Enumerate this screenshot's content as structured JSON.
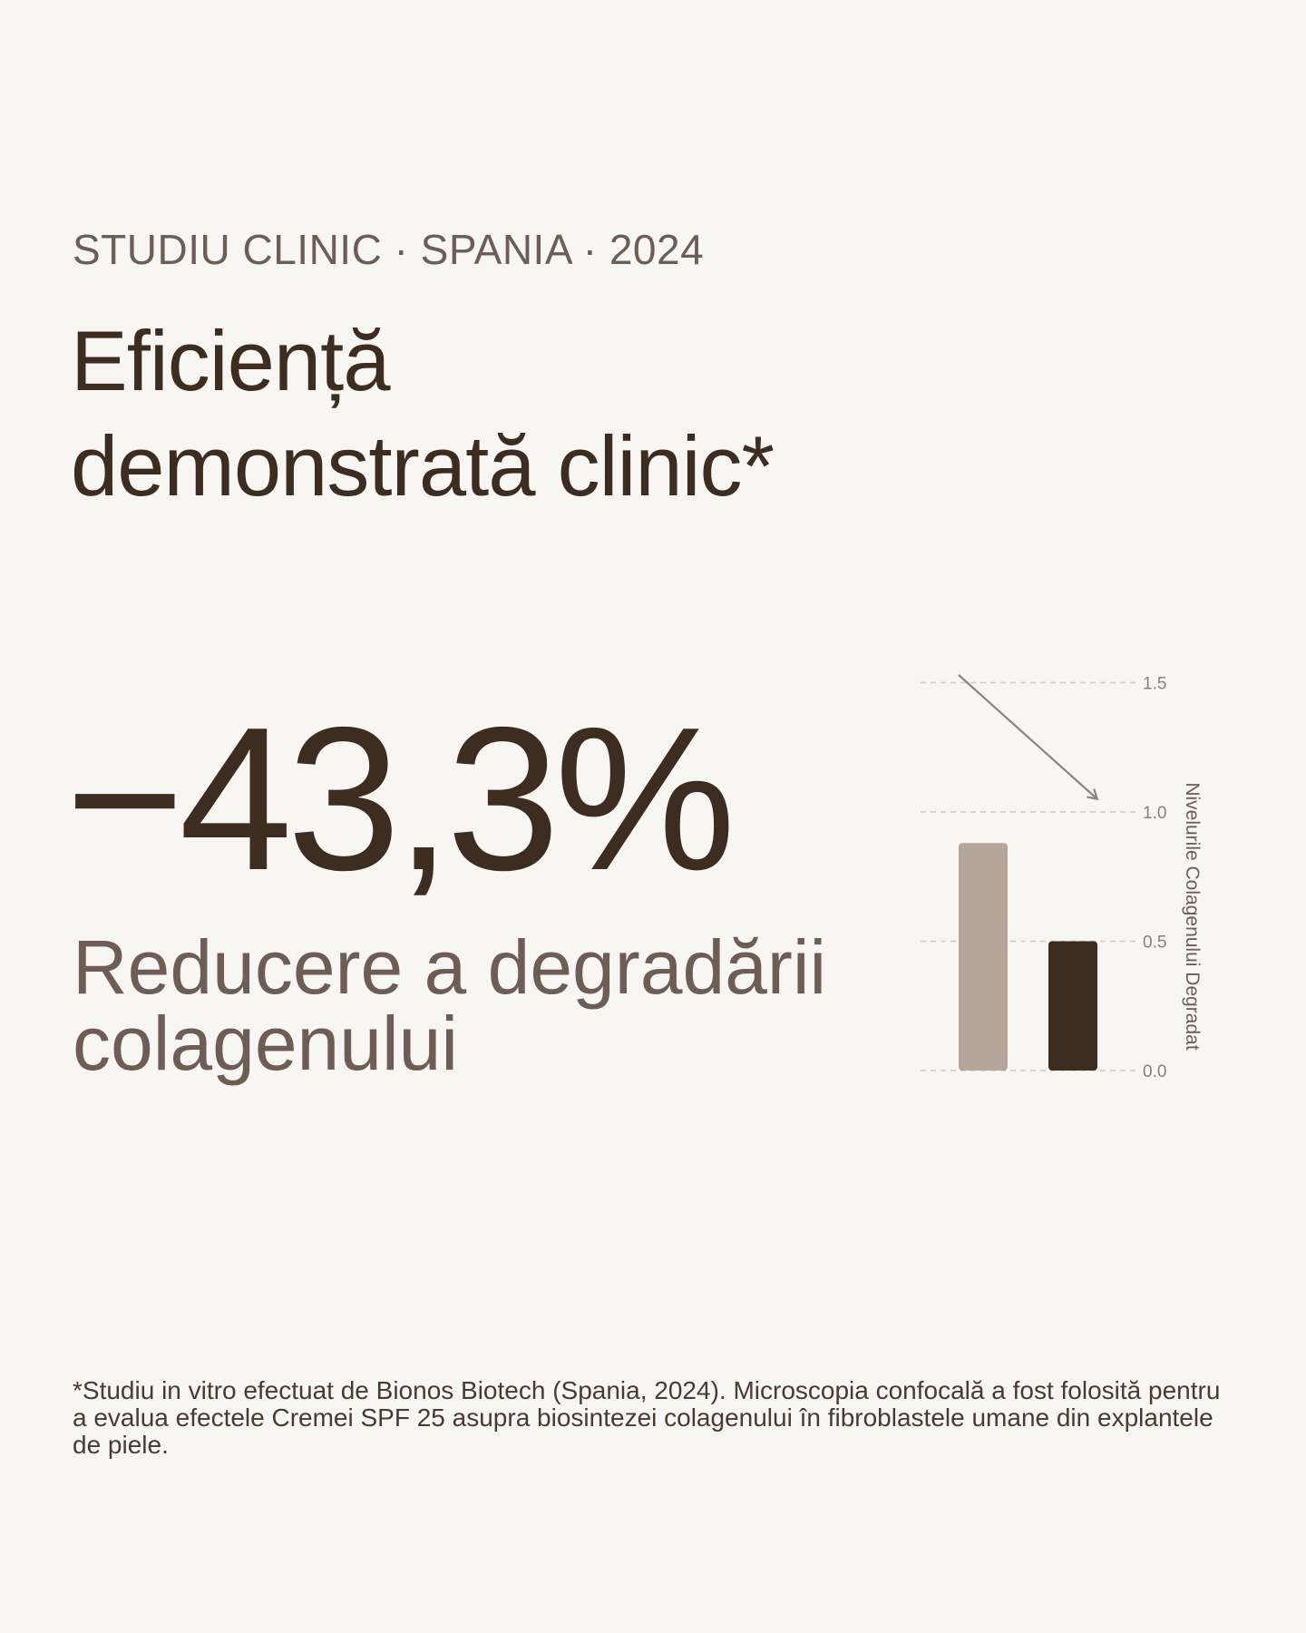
{
  "header": {
    "eyebrow": "STUDIU CLINIC · SPANIA · 2024",
    "headline_line1": "Eficiență",
    "headline_line2": "demonstrată clinic*"
  },
  "stat": {
    "value": "−43,3%",
    "label_line1": "Reducere a degradării",
    "label_line2": "colagenului"
  },
  "chart_data": {
    "type": "bar",
    "categories": [
      "",
      ""
    ],
    "values": [
      0.88,
      0.5
    ],
    "colors": [
      "#b5a69c",
      "#3d2d20"
    ],
    "xlabel": "",
    "ylabel": "Nivelurile Colagenului Degradat",
    "ylim": [
      0,
      1.5
    ],
    "yticks": [
      "0.0",
      "0.5",
      "1.0",
      "1.5"
    ],
    "grid": true,
    "gridline_style": "dashed",
    "axis_side": "right",
    "annotation": "downward-arrow"
  },
  "footnote": "*Studiu in vitro efectuat de Bionos Biotech (Spania, 2024). Microscopia confocală a fost folosită pentru a evalua efectele Cremei SPF 25 asupra biosintezei colagenului în fibroblastele umane din explantele de piele."
}
